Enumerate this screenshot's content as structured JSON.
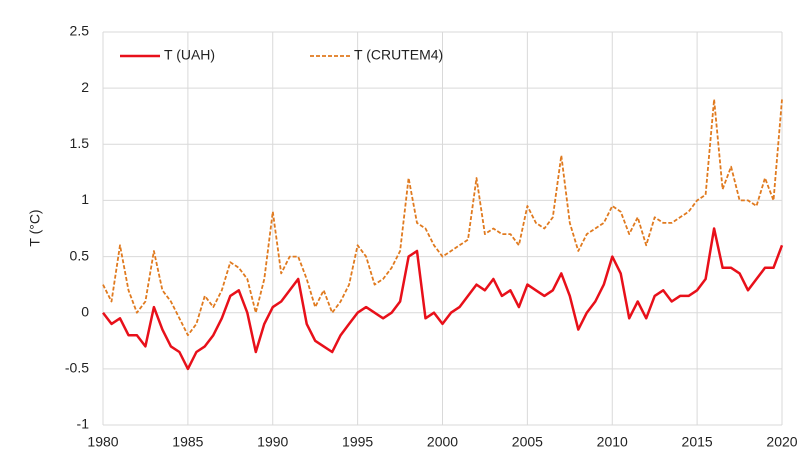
{
  "chart_data": {
    "type": "line",
    "y_label": "T (°C)",
    "x": [
      1980,
      1980.5,
      1981,
      1981.5,
      1982,
      1982.5,
      1983,
      1983.5,
      1984,
      1984.5,
      1985,
      1985.5,
      1986,
      1986.5,
      1987,
      1987.5,
      1988,
      1988.5,
      1989,
      1989.5,
      1990,
      1990.5,
      1991,
      1991.5,
      1992,
      1992.5,
      1993,
      1993.5,
      1994,
      1994.5,
      1995,
      1995.5,
      1996,
      1996.5,
      1997,
      1997.5,
      1998,
      1998.5,
      1999,
      1999.5,
      2000,
      2000.5,
      2001,
      2001.5,
      2002,
      2002.5,
      2003,
      2003.5,
      2004,
      2004.5,
      2005,
      2005.5,
      2006,
      2006.5,
      2007,
      2007.5,
      2008,
      2008.5,
      2009,
      2009.5,
      2010,
      2010.5,
      2011,
      2011.5,
      2012,
      2012.5,
      2013,
      2013.5,
      2014,
      2014.5,
      2015,
      2015.5,
      2016,
      2016.5,
      2017,
      2017.5,
      2018,
      2018.5,
      2019,
      2019.5,
      2020
    ],
    "series": [
      {
        "name": "T (UAH)",
        "color": "#e8101a",
        "dashed": false,
        "values": [
          0.0,
          -0.1,
          -0.05,
          -0.2,
          -0.2,
          -0.3,
          0.05,
          -0.15,
          -0.3,
          -0.35,
          -0.5,
          -0.35,
          -0.3,
          -0.2,
          -0.05,
          0.15,
          0.2,
          0.0,
          -0.35,
          -0.1,
          0.05,
          0.1,
          0.2,
          0.3,
          -0.1,
          -0.25,
          -0.3,
          -0.35,
          -0.2,
          -0.1,
          0.0,
          0.05,
          0.0,
          -0.05,
          0.0,
          0.1,
          0.5,
          0.55,
          -0.05,
          0.0,
          -0.1,
          0.0,
          0.05,
          0.15,
          0.25,
          0.2,
          0.3,
          0.15,
          0.2,
          0.05,
          0.25,
          0.2,
          0.15,
          0.2,
          0.35,
          0.15,
          -0.15,
          0.0,
          0.1,
          0.25,
          0.5,
          0.35,
          -0.05,
          0.1,
          -0.05,
          0.15,
          0.2,
          0.1,
          0.15,
          0.15,
          0.2,
          0.3,
          0.75,
          0.4,
          0.4,
          0.35,
          0.2,
          0.3,
          0.4,
          0.4,
          0.6
        ]
      },
      {
        "name": "T (CRUTEM4)",
        "color": "#e07a1f",
        "dashed": true,
        "values": [
          0.25,
          0.1,
          0.6,
          0.2,
          0.0,
          0.1,
          0.55,
          0.2,
          0.1,
          -0.05,
          -0.2,
          -0.1,
          0.15,
          0.05,
          0.2,
          0.45,
          0.4,
          0.3,
          0.0,
          0.3,
          0.9,
          0.35,
          0.5,
          0.5,
          0.3,
          0.05,
          0.2,
          0.0,
          0.1,
          0.25,
          0.6,
          0.5,
          0.25,
          0.3,
          0.4,
          0.55,
          1.2,
          0.8,
          0.75,
          0.6,
          0.5,
          0.55,
          0.6,
          0.65,
          1.2,
          0.7,
          0.75,
          0.7,
          0.7,
          0.6,
          0.95,
          0.8,
          0.75,
          0.85,
          1.4,
          0.8,
          0.55,
          0.7,
          0.75,
          0.8,
          0.95,
          0.9,
          0.7,
          0.85,
          0.6,
          0.85,
          0.8,
          0.8,
          0.85,
          0.9,
          1.0,
          1.05,
          1.9,
          1.1,
          1.3,
          1.0,
          1.0,
          0.95,
          1.2,
          1.0,
          1.9
        ]
      }
    ],
    "xlim": [
      1980,
      2020
    ],
    "xticks": [
      1980,
      1985,
      1990,
      1995,
      2000,
      2005,
      2010,
      2015,
      2020
    ],
    "ylim": [
      -1,
      2.5
    ],
    "yticks": [
      -1,
      -0.5,
      0,
      0.5,
      1,
      1.5,
      2,
      2.5
    ],
    "grid": true,
    "legend": "top-left"
  }
}
